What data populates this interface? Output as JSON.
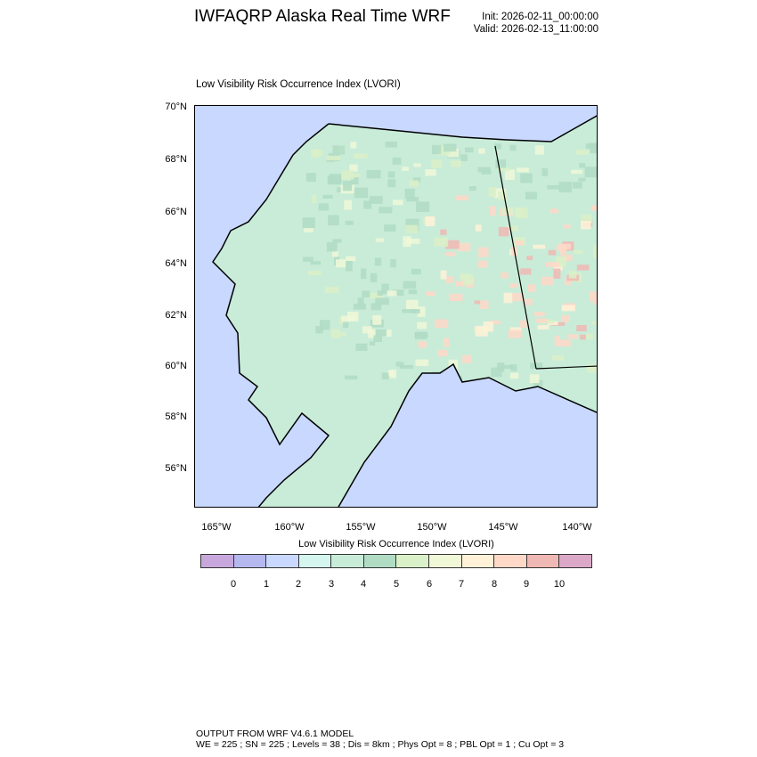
{
  "header": {
    "title": "IWFAQRP Alaska Real Time WRF",
    "init": "Init: 2026-02-11_00:00:00",
    "valid": "Valid: 2026-02-13_11:00:00"
  },
  "plot": {
    "subtitle": "Low Visibility Risk Occurrence Index   (LVORI)",
    "lat_labels": [
      "70°N",
      "68°N",
      "66°N",
      "64°N",
      "62°N",
      "60°N",
      "58°N",
      "56°N"
    ],
    "lon_labels": [
      "165°W",
      "160°W",
      "155°W",
      "150°W",
      "145°W",
      "140°W"
    ],
    "ocean_color": "#c8d8ff",
    "land_color": "#c8ecd8"
  },
  "colorbar": {
    "title": "Low Visibility Risk Occurrence Index  (LVORI)",
    "labels": [
      "0",
      "1",
      "2",
      "3",
      "4",
      "5",
      "6",
      "7",
      "8",
      "9",
      "10"
    ],
    "colors": [
      "#c8a8dc",
      "#b4b8ee",
      "#c8d8ff",
      "#d4f6ee",
      "#c8ecd8",
      "#b0dcc4",
      "#daf0c8",
      "#f0f8d8",
      "#fff2d8",
      "#ffd8c8",
      "#f0b8b4",
      "#dca8c8"
    ]
  },
  "footer": {
    "line1": "OUTPUT FROM WRF V4.6.1 MODEL",
    "line2": "WE = 225 ; SN = 225 ; Levels = 38 ; Dis = 8km ; Phys Opt = 8 ; PBL Opt = 1 ; Cu Opt = 3"
  }
}
